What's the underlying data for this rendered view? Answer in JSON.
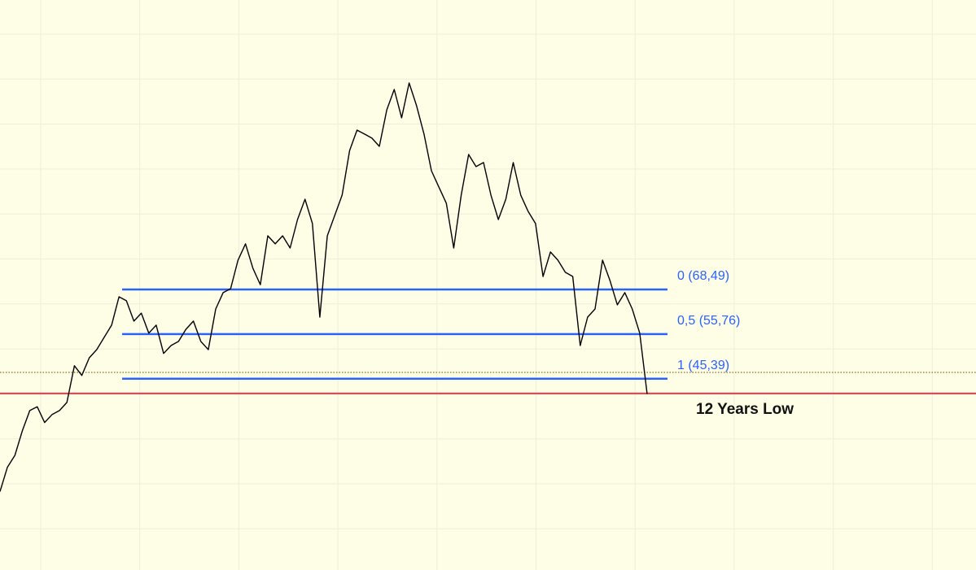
{
  "chart_data": {
    "type": "line",
    "log_scale": true,
    "grid": true,
    "background": "#fefee6",
    "ylim": [
      18.81,
      259.8
    ],
    "series": [
      {
        "color": "#000000",
        "values": [
          27.0,
          30.2,
          31.9,
          35.7,
          39.2,
          39.9,
          37.1,
          38.5,
          39.2,
          40.7,
          48.2,
          46.1,
          50.0,
          51.9,
          54.9,
          58.1,
          66.2,
          65.0,
          59.2,
          61.4,
          56.0,
          58.1,
          51.0,
          52.9,
          53.9,
          57.0,
          59.2,
          53.9,
          51.9,
          62.6,
          67.5,
          68.7,
          78.4,
          84.5,
          75.5,
          70.0,
          87.7,
          84.5,
          87.7,
          82.9,
          94.5,
          103.8,
          92.8,
          60.3,
          87.7,
          96.3,
          105.8,
          129.9,
          142.7,
          140.1,
          137.5,
          132.4,
          156.7,
          172.1,
          151.0,
          177.3,
          159.7,
          140.1,
          118.3,
          109.8,
          101.9,
          82.9,
          105.8,
          127.5,
          120.6,
          122.9,
          105.8,
          94.5,
          103.8,
          122.9,
          105.8,
          98.1,
          92.8,
          72.7,
          81.4,
          78.4,
          74.1,
          72.7,
          52.9,
          60.3,
          62.6,
          78.4,
          71.4,
          63.8,
          67.5,
          62.6,
          56.0,
          42.3
        ]
      }
    ],
    "fib_color": "#2962ff",
    "fib_levels": [
      {
        "value": 68.49,
        "label": "0 (68,49)"
      },
      {
        "value": 55.76,
        "label": "0,5 (55,76)"
      },
      {
        "value": 45.39,
        "label": "1 (45,39)"
      }
    ],
    "price_line": {
      "value": 46.74,
      "color": "#8a6d1f"
    },
    "low_line": {
      "value": 42.41,
      "label": "12 Years Low",
      "color": "#f23645"
    }
  }
}
